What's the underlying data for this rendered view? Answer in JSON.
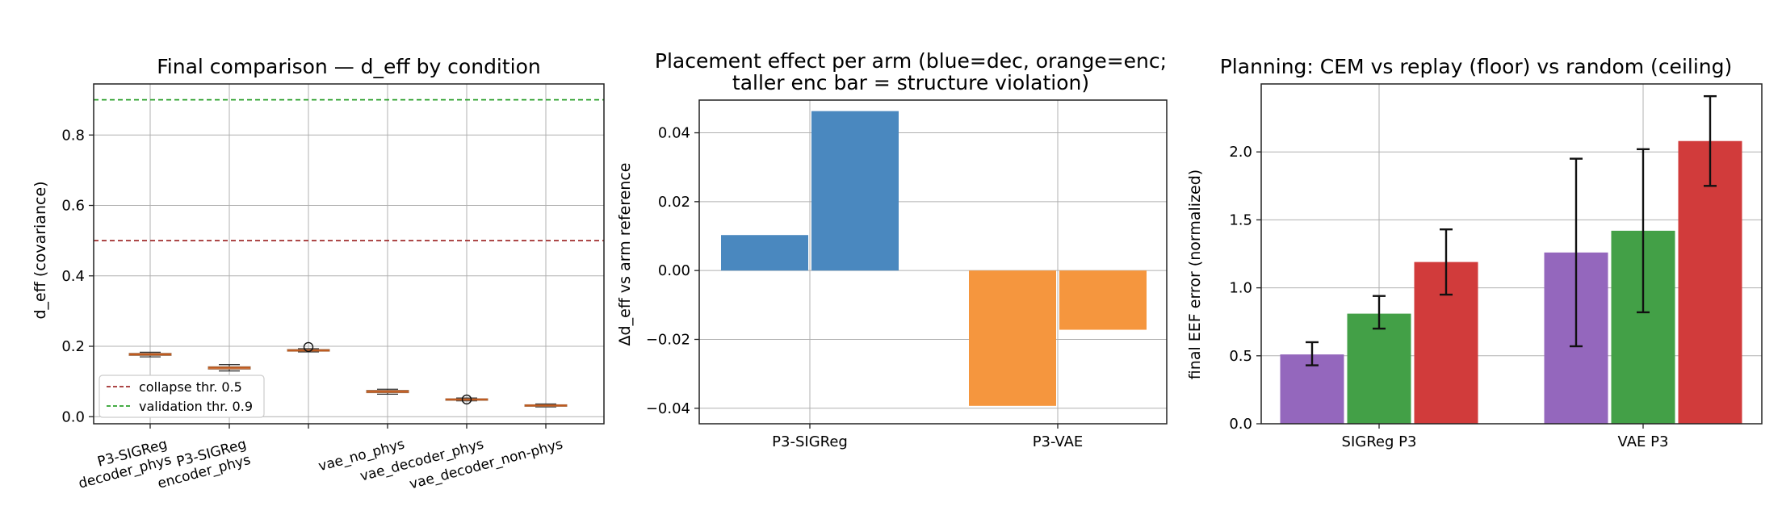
{
  "chart_data": [
    {
      "type": "box",
      "title": "Final comparison — d_eff by condition",
      "xlabel": "",
      "ylabel": "d_eff (covariance)",
      "ylim": [
        -0.02,
        0.945
      ],
      "yticks": [
        0.0,
        0.2,
        0.4,
        0.6,
        0.8
      ],
      "ytick_labels": [
        "0.0",
        "0.2",
        "0.4",
        "0.6",
        "0.8"
      ],
      "grid": true,
      "categories": [
        [
          "P3-SIGReg",
          "decoder_phys"
        ],
        [
          "P3-SIGReg",
          "encoder_phys"
        ],
        [
          ""
        ],
        [
          "vae_no_phys"
        ],
        [
          "vae_decoder_phys"
        ],
        [
          "vae_decoder_non-phys"
        ]
      ],
      "boxes": [
        {
          "whislo": 0.17,
          "q1": 0.174,
          "med": 0.177,
          "q3": 0.18,
          "whishi": 0.183,
          "fliers": []
        },
        {
          "whislo": 0.13,
          "q1": 0.135,
          "med": 0.139,
          "q3": 0.142,
          "whishi": 0.148,
          "fliers": []
        },
        {
          "whislo": 0.184,
          "q1": 0.186,
          "med": 0.188,
          "q3": 0.191,
          "whishi": 0.193,
          "fliers": [
            0.198
          ]
        },
        {
          "whislo": 0.064,
          "q1": 0.068,
          "med": 0.071,
          "q3": 0.075,
          "whishi": 0.078,
          "fliers": []
        },
        {
          "whislo": 0.045,
          "q1": 0.047,
          "med": 0.049,
          "q3": 0.051,
          "whishi": 0.053,
          "fliers": [
            0.049
          ]
        },
        {
          "whislo": 0.028,
          "q1": 0.03,
          "med": 0.032,
          "q3": 0.034,
          "whishi": 0.036,
          "fliers": []
        }
      ],
      "hlines": [
        {
          "y": 0.5,
          "color": "#a02c2c",
          "style": "dashed"
        },
        {
          "y": 0.9,
          "color": "#2ca02c",
          "style": "dashed"
        }
      ],
      "box_color": "#e8a07a",
      "median_color": "#c05a1e",
      "legend": {
        "placement": "lower-left",
        "entries": [
          {
            "label": "collapse thr. 0.5",
            "color": "#a02c2c"
          },
          {
            "label": "validation thr. 0.9",
            "color": "#2ca02c"
          }
        ]
      }
    },
    {
      "type": "bar",
      "title": [
        "Placement effect per arm (blue=dec, orange=enc;",
        "taller enc bar = structure violation)"
      ],
      "xlabel": "",
      "ylabel": "Δd_eff vs arm reference",
      "ylim": [
        -0.0445,
        0.0495
      ],
      "yticks": [
        -0.04,
        -0.02,
        0.0,
        0.02,
        0.04
      ],
      "ytick_labels": [
        "−0.04",
        "−0.02",
        "0.00",
        "0.02",
        "0.04"
      ],
      "grid": true,
      "categories": [
        "P3-SIGReg",
        "P3-VAE"
      ],
      "bars": [
        {
          "category": "P3-SIGReg",
          "slot": 0,
          "value": 0.0103,
          "color": "#4a88bf"
        },
        {
          "category": "P3-SIGReg",
          "slot": 1,
          "value": 0.0463,
          "color": "#4a88bf"
        },
        {
          "category": "P3-VAE",
          "slot": 0,
          "value": -0.0393,
          "color": "#f5963e"
        },
        {
          "category": "P3-VAE",
          "slot": 1,
          "value": -0.0172,
          "color": "#f5963e"
        }
      ]
    },
    {
      "type": "bar",
      "title": "Planning: CEM vs replay (floor) vs random (ceiling)",
      "xlabel": "",
      "ylabel": "final EEF error (normalized)",
      "ylim": [
        0.0,
        2.5
      ],
      "yticks": [
        0.0,
        0.5,
        1.0,
        1.5,
        2.0
      ],
      "ytick_labels": [
        "0.0",
        "0.5",
        "1.0",
        "1.5",
        "2.0"
      ],
      "grid": true,
      "categories": [
        "SIGReg P3",
        "VAE P3"
      ],
      "series": [
        {
          "color": "#9467bd",
          "values": [
            0.51,
            1.26
          ],
          "err_low": [
            0.43,
            0.57
          ],
          "err_high": [
            0.6,
            1.95
          ]
        },
        {
          "color": "#43a047",
          "values": [
            0.81,
            1.42
          ],
          "err_low": [
            0.7,
            0.82
          ],
          "err_high": [
            0.94,
            2.02
          ]
        },
        {
          "color": "#d13b3b",
          "values": [
            1.19,
            2.08
          ],
          "err_low": [
            0.95,
            1.75
          ],
          "err_high": [
            1.43,
            2.41
          ]
        }
      ]
    }
  ]
}
